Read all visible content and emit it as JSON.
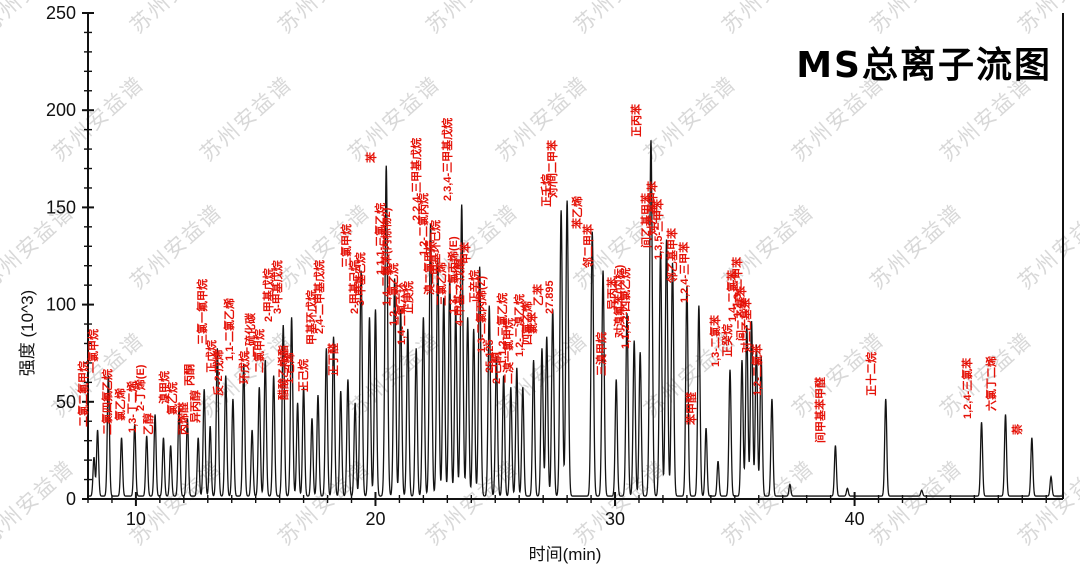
{
  "title": "MS总离子流图",
  "watermark": {
    "text": "苏州安益谱"
  },
  "chart_data": {
    "type": "line",
    "title": "MS总离子流图",
    "xlabel": "时间(min)",
    "ylabel": "强度 (10^3)",
    "xlim": [
      8,
      48.7
    ],
    "ylim": [
      0,
      250
    ],
    "x_major_ticks": [
      10,
      20,
      30,
      40
    ],
    "x_minor_step": 1,
    "y_major_ticks": [
      0,
      50,
      100,
      150,
      200,
      250
    ],
    "y_minor_step": 10,
    "baseline": 1.5,
    "line_color": "#141414",
    "label_color": "#e51208",
    "legend": "none",
    "grid": false,
    "peaks_format": [
      "time_min",
      "height_10e3",
      "label",
      "label_only_flag"
    ],
    "peaks": [
      [
        8.25,
        20,
        ""
      ],
      [
        8.4,
        34,
        "二氯二氟甲烷"
      ],
      [
        8.85,
        62,
        "一氯甲烷"
      ],
      [
        9.4,
        30,
        "二氯四氟乙烷"
      ],
      [
        9.95,
        37,
        "氯乙烯"
      ],
      [
        10.45,
        31,
        "1,3-丁二烯"
      ],
      [
        10.8,
        42,
        "2-丁烯(E)"
      ],
      [
        11.15,
        30,
        "乙醇"
      ],
      [
        11.45,
        26,
        ""
      ],
      [
        11.8,
        46,
        "溴甲烷"
      ],
      [
        12.15,
        40,
        "氯乙烷"
      ],
      [
        12.6,
        30,
        "丙烯醛"
      ],
      [
        12.85,
        55,
        "丙酮"
      ],
      [
        13.1,
        36,
        "异丙醇"
      ],
      [
        13.4,
        76,
        "三氯一氟甲烷"
      ],
      [
        13.75,
        62,
        "正戊烷"
      ],
      [
        14.05,
        50,
        "反-2-戊烯"
      ],
      [
        14.5,
        68,
        "1,1-二氯乙烯"
      ],
      [
        14.85,
        34,
        ""
      ],
      [
        15.15,
        56,
        "环戊烷"
      ],
      [
        15.4,
        70,
        "二硫化碳"
      ],
      [
        15.75,
        62,
        "二氯甲烷"
      ],
      [
        16.15,
        88,
        "2-甲基戊烷"
      ],
      [
        16.5,
        92,
        "3-甲基戊烷"
      ],
      [
        16.75,
        48,
        "醋酸乙烯酯"
      ],
      [
        17.0,
        56,
        "1-己烯"
      ],
      [
        17.35,
        40,
        ""
      ],
      [
        17.6,
        52,
        "正己烷"
      ],
      [
        17.95,
        76,
        "甲基环戊烷"
      ],
      [
        18.25,
        82,
        "2,4-二甲基戊烷"
      ],
      [
        18.55,
        54,
        ""
      ],
      [
        18.85,
        60,
        "正丁醛"
      ],
      [
        19.15,
        48,
        ""
      ],
      [
        19.4,
        116,
        "三氯甲烷"
      ],
      [
        19.75,
        92,
        "2-甲基己烷"
      ],
      [
        20.0,
        96,
        "3-甲基己烷"
      ],
      [
        20.45,
        170,
        "苯"
      ],
      [
        20.8,
        112,
        "1,1,1-三氯乙烷"
      ],
      [
        21.05,
        96,
        "1,4-二氟苯(内标物2)"
      ],
      [
        21.35,
        86,
        "1,2-二氯乙烷"
      ],
      [
        21.7,
        76,
        "1,4-二氧六环"
      ],
      [
        22.0,
        92,
        "正庚烷"
      ],
      [
        22.3,
        140,
        "2,2,4-三甲基戊烷"
      ],
      [
        22.6,
        122,
        "1,2-二氯丙烷"
      ],
      [
        22.85,
        102,
        "溴二氯甲烷"
      ],
      [
        23.1,
        112,
        "甲基环己烷"
      ],
      [
        23.35,
        96,
        "三氯乙烯"
      ],
      [
        23.6,
        150,
        "2,3,4-三甲基戊烷"
      ],
      [
        23.85,
        92,
        "1,3-二氯丙烯(E)"
      ],
      [
        24.1,
        86,
        "4-甲基-2-戊酮"
      ],
      [
        24.35,
        118,
        "甲苯"
      ],
      [
        24.75,
        98,
        "正辛烷"
      ],
      [
        25.05,
        72,
        "1,3-二氯丙烯(Z)"
      ],
      [
        25.35,
        62,
        "25.125"
      ],
      [
        25.65,
        56,
        "2-己酮"
      ],
      [
        25.9,
        66,
        "1,1,2-三氯乙烷"
      ],
      [
        26.15,
        56,
        "二溴一氯甲烷"
      ],
      [
        26.6,
        70,
        "1,2-二溴乙烷"
      ],
      [
        26.95,
        76,
        "四氯乙烯"
      ],
      [
        27.15,
        82,
        "氯苯"
      ],
      [
        27.4,
        96,
        "乙苯"
      ],
      [
        27.75,
        147,
        "正壬烷"
      ],
      [
        27.88,
        92,
        "27.895",
        1
      ],
      [
        28.0,
        152,
        "对/间二甲苯"
      ],
      [
        29.05,
        136,
        "苯乙烯"
      ],
      [
        29.5,
        116,
        "邻二甲苯"
      ],
      [
        30.05,
        60,
        "三溴甲烷"
      ],
      [
        30.5,
        94,
        "异丙苯"
      ],
      [
        30.8,
        80,
        "对溴氟苯(内标)"
      ],
      [
        31.05,
        74,
        "1,1,2,2-四氯乙烷"
      ],
      [
        31.5,
        183,
        "正丙苯"
      ],
      [
        31.9,
        126,
        "间乙基甲苯"
      ],
      [
        32.15,
        132,
        "对乙基甲苯"
      ],
      [
        32.4,
        120,
        "1,3,5-三甲苯"
      ],
      [
        33.0,
        108,
        "邻乙基甲苯"
      ],
      [
        33.5,
        98,
        "1,2,4-三甲苯"
      ],
      [
        33.8,
        35,
        "苯甲醛"
      ],
      [
        34.3,
        18,
        ""
      ],
      [
        34.8,
        65,
        "1,3-二氯苯"
      ],
      [
        35.3,
        70,
        "正癸烷"
      ],
      [
        35.5,
        88,
        "1,4-二氯苯"
      ],
      [
        35.7,
        90,
        "1,2,3-三甲苯"
      ],
      [
        35.9,
        78,
        "间二乙基苯"
      ],
      [
        36.1,
        72,
        "对二乙基苯"
      ],
      [
        36.55,
        50,
        "1,2-二氯苯"
      ],
      [
        37.3,
        6,
        ""
      ],
      [
        39.2,
        26,
        "间甲基苯甲醛"
      ],
      [
        39.7,
        4,
        ""
      ],
      [
        41.3,
        50,
        "正十二烷"
      ],
      [
        42.8,
        3,
        ""
      ],
      [
        45.3,
        38,
        "1,2,4-三氯苯"
      ],
      [
        46.3,
        42,
        "六氯丁二烯"
      ],
      [
        47.4,
        30,
        "萘"
      ],
      [
        48.2,
        10,
        ""
      ]
    ]
  }
}
